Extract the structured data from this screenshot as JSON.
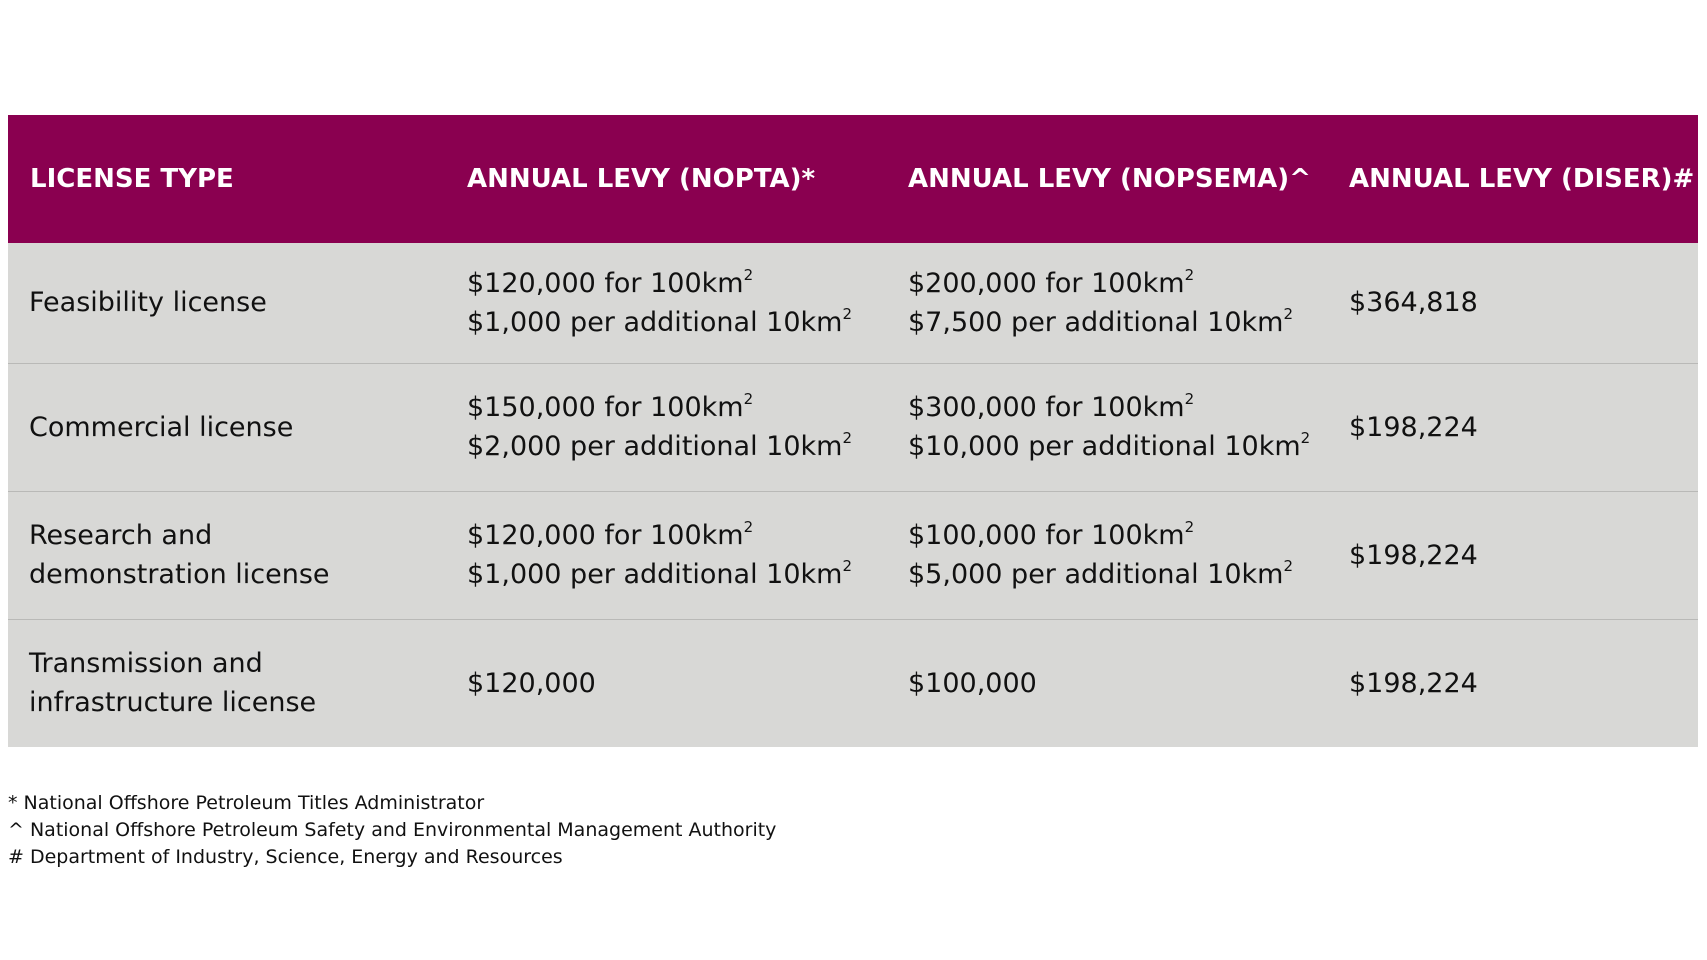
{
  "table": {
    "headers": [
      "LICENSE TYPE",
      "ANNUAL LEVY (NOPTA)*",
      "ANNUAL LEVY (NOPSEMA)^",
      "ANNUAL LEVY (DISER)#"
    ],
    "rows": [
      {
        "license_type": [
          "Feasibility license"
        ],
        "nopta": [
          {
            "text": "$120,000 for 100km",
            "sup": "2"
          },
          {
            "text": "$1,000 per additional 10km",
            "sup": "2"
          }
        ],
        "nopsema": [
          {
            "text": "$200,000 for 100km",
            "sup": "2"
          },
          {
            "text": "$7,500 per additional 10km",
            "sup": "2"
          }
        ],
        "diser": [
          "$364,818"
        ]
      },
      {
        "license_type": [
          "Commercial license"
        ],
        "nopta": [
          {
            "text": "$150,000 for 100km",
            "sup": "2"
          },
          {
            "text": "$2,000 per additional 10km",
            "sup": "2"
          }
        ],
        "nopsema": [
          {
            "text": "$300,000 for 100km",
            "sup": "2"
          },
          {
            "text": "$10,000 per additional 10km",
            "sup": "2"
          }
        ],
        "diser": [
          "$198,224"
        ]
      },
      {
        "license_type": [
          "Research and",
          "demonstration license"
        ],
        "nopta": [
          {
            "text": "$120,000 for 100km",
            "sup": "2"
          },
          {
            "text": "$1,000 per additional 10km",
            "sup": "2"
          }
        ],
        "nopsema": [
          {
            "text": "$100,000 for 100km",
            "sup": "2"
          },
          {
            "text": "$5,000 per additional 10km",
            "sup": "2"
          }
        ],
        "diser": [
          "$198,224"
        ]
      },
      {
        "license_type": [
          "Transmission and",
          "infrastructure license"
        ],
        "nopta": [
          {
            "text": "$120,000",
            "sup": ""
          }
        ],
        "nopsema": [
          {
            "text": "$100,000",
            "sup": ""
          }
        ],
        "diser": [
          "$198,224"
        ]
      }
    ]
  },
  "footnotes": [
    "* National Offshore Petroleum Titles Administrator",
    "^ National Offshore Petroleum Safety and Environmental Management Authority",
    "# Department of Industry, Science, Energy and Resources"
  ],
  "colors": {
    "header_background": "#8a0050",
    "header_text": "#ffffff",
    "row_background": "#d8d8d6",
    "row_divider": "#b9b9b7"
  }
}
